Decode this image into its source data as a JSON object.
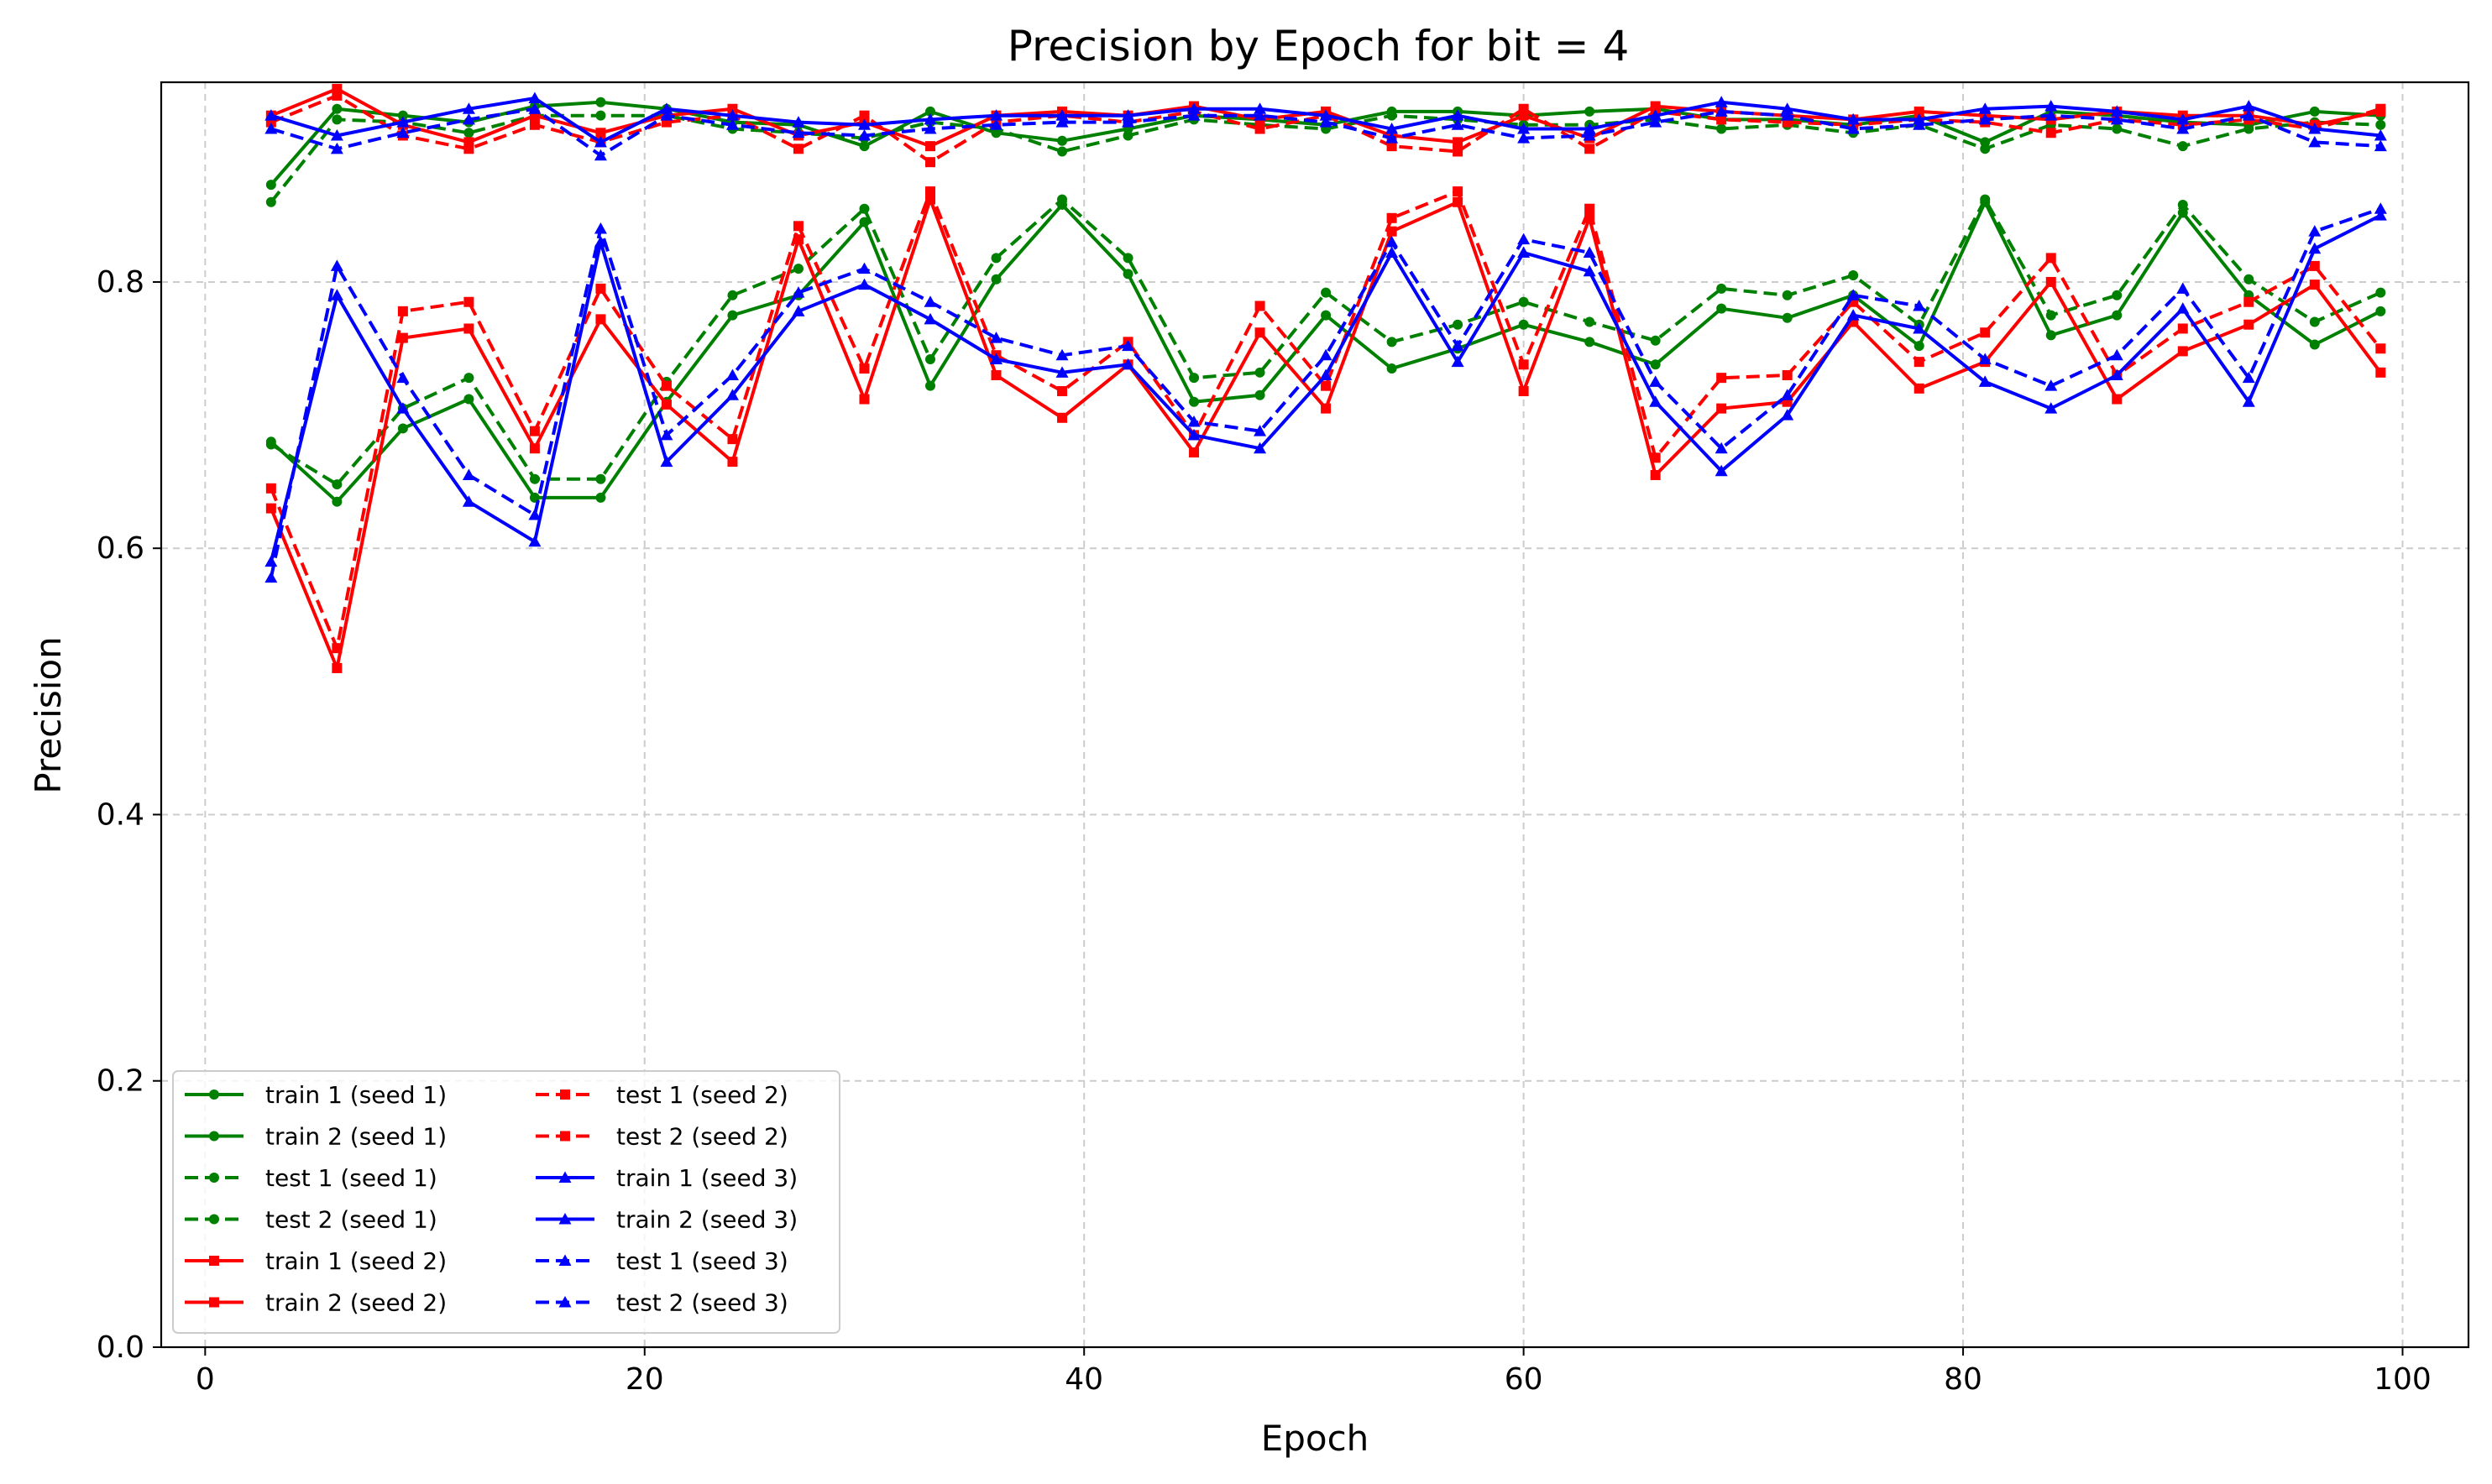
{
  "chart_data": {
    "type": "line",
    "title": "Precision by Epoch for bit = 4",
    "xlabel": "Epoch",
    "ylabel": "Precision",
    "xlim": [
      -2,
      103
    ],
    "ylim": [
      0.0,
      0.95
    ],
    "xticks": [
      0,
      20,
      40,
      60,
      80,
      100
    ],
    "yticks": [
      0.0,
      0.2,
      0.4,
      0.6,
      0.8
    ],
    "grid": true,
    "legend_position": "bottom-left",
    "legend_columns": 2,
    "x": [
      3,
      6,
      9,
      12,
      15,
      18,
      21,
      24,
      27,
      30,
      33,
      36,
      39,
      42,
      45,
      48,
      51,
      54,
      57,
      60,
      63,
      66,
      69,
      72,
      75,
      78,
      81,
      84,
      87,
      90,
      93,
      96,
      99
    ],
    "series": [
      {
        "name": "train 1 (seed 1)",
        "color": "#008000",
        "dash": "solid",
        "marker": "circle",
        "values": [
          0.873,
          0.93,
          0.925,
          0.92,
          0.932,
          0.935,
          0.93,
          0.92,
          0.918,
          0.902,
          0.928,
          0.912,
          0.906,
          0.915,
          0.925,
          0.922,
          0.918,
          0.928,
          0.928,
          0.925,
          0.928,
          0.93,
          0.922,
          0.922,
          0.918,
          0.925,
          0.905,
          0.928,
          0.925,
          0.92,
          0.918,
          0.928,
          0.925
        ]
      },
      {
        "name": "train 2 (seed 1)",
        "color": "#008000",
        "dash": "solid",
        "marker": "circle",
        "values": [
          0.68,
          0.635,
          0.69,
          0.712,
          0.638,
          0.638,
          0.71,
          0.775,
          0.79,
          0.845,
          0.722,
          0.802,
          0.858,
          0.806,
          0.71,
          0.715,
          0.775,
          0.735,
          0.75,
          0.768,
          0.755,
          0.738,
          0.78,
          0.773,
          0.79,
          0.752,
          0.86,
          0.76,
          0.775,
          0.852,
          0.79,
          0.753,
          0.778
        ]
      },
      {
        "name": "test 1 (seed 1)",
        "color": "#008000",
        "dash": "dashed",
        "marker": "circle",
        "values": [
          0.86,
          0.922,
          0.92,
          0.912,
          0.925,
          0.925,
          0.925,
          0.915,
          0.912,
          0.908,
          0.92,
          0.915,
          0.898,
          0.91,
          0.922,
          0.918,
          0.915,
          0.925,
          0.922,
          0.918,
          0.918,
          0.922,
          0.915,
          0.918,
          0.912,
          0.918,
          0.9,
          0.918,
          0.915,
          0.902,
          0.915,
          0.92,
          0.918
        ]
      },
      {
        "name": "test 2 (seed 1)",
        "color": "#008000",
        "dash": "dashed",
        "marker": "circle",
        "values": [
          0.678,
          0.648,
          0.705,
          0.728,
          0.652,
          0.652,
          0.725,
          0.79,
          0.81,
          0.855,
          0.742,
          0.818,
          0.862,
          0.818,
          0.728,
          0.732,
          0.792,
          0.755,
          0.768,
          0.785,
          0.77,
          0.756,
          0.795,
          0.79,
          0.805,
          0.768,
          0.862,
          0.775,
          0.79,
          0.858,
          0.802,
          0.77,
          0.792
        ]
      },
      {
        "name": "train 1 (seed 2)",
        "color": "#ff0000",
        "dash": "solid",
        "marker": "square",
        "values": [
          0.925,
          0.945,
          0.918,
          0.905,
          0.925,
          0.912,
          0.925,
          0.93,
          0.91,
          0.92,
          0.902,
          0.925,
          0.928,
          0.925,
          0.932,
          0.922,
          0.928,
          0.91,
          0.905,
          0.925,
          0.908,
          0.932,
          0.928,
          0.925,
          0.922,
          0.928,
          0.925,
          0.922,
          0.928,
          0.925,
          0.925,
          0.918,
          0.928
        ]
      },
      {
        "name": "train 2 (seed 2)",
        "color": "#ff0000",
        "dash": "solid",
        "marker": "square",
        "values": [
          0.63,
          0.51,
          0.758,
          0.765,
          0.675,
          0.772,
          0.708,
          0.665,
          0.832,
          0.712,
          0.862,
          0.73,
          0.698,
          0.738,
          0.672,
          0.762,
          0.705,
          0.838,
          0.86,
          0.718,
          0.848,
          0.655,
          0.705,
          0.71,
          0.77,
          0.72,
          0.74,
          0.8,
          0.712,
          0.748,
          0.768,
          0.798,
          0.732
        ]
      },
      {
        "name": "test 1 (seed 2)",
        "color": "#ff0000",
        "dash": "dashed",
        "marker": "square",
        "values": [
          0.92,
          0.94,
          0.91,
          0.9,
          0.918,
          0.905,
          0.92,
          0.925,
          0.9,
          0.925,
          0.89,
          0.92,
          0.925,
          0.92,
          0.928,
          0.915,
          0.925,
          0.902,
          0.898,
          0.93,
          0.9,
          0.928,
          0.922,
          0.92,
          0.918,
          0.922,
          0.92,
          0.912,
          0.922,
          0.918,
          0.922,
          0.915,
          0.93
        ]
      },
      {
        "name": "test 2 (seed 2)",
        "color": "#ff0000",
        "dash": "dashed",
        "marker": "square",
        "values": [
          0.645,
          0.525,
          0.778,
          0.785,
          0.688,
          0.795,
          0.722,
          0.682,
          0.842,
          0.735,
          0.868,
          0.745,
          0.718,
          0.755,
          0.685,
          0.782,
          0.722,
          0.848,
          0.868,
          0.738,
          0.855,
          0.668,
          0.728,
          0.73,
          0.785,
          0.74,
          0.762,
          0.818,
          0.73,
          0.765,
          0.785,
          0.812,
          0.75
        ]
      },
      {
        "name": "train 1 (seed 3)",
        "color": "#0000ff",
        "dash": "solid",
        "marker": "triangle",
        "values": [
          0.925,
          0.91,
          0.92,
          0.93,
          0.938,
          0.905,
          0.93,
          0.925,
          0.92,
          0.918,
          0.922,
          0.925,
          0.925,
          0.925,
          0.93,
          0.93,
          0.925,
          0.915,
          0.925,
          0.915,
          0.915,
          0.925,
          0.935,
          0.93,
          0.922,
          0.922,
          0.93,
          0.932,
          0.928,
          0.922,
          0.932,
          0.915,
          0.91
        ]
      },
      {
        "name": "train 2 (seed 3)",
        "color": "#0000ff",
        "dash": "solid",
        "marker": "triangle",
        "values": [
          0.59,
          0.79,
          0.705,
          0.635,
          0.605,
          0.83,
          0.665,
          0.715,
          0.778,
          0.798,
          0.772,
          0.742,
          0.732,
          0.738,
          0.685,
          0.675,
          0.73,
          0.822,
          0.74,
          0.822,
          0.808,
          0.71,
          0.658,
          0.7,
          0.775,
          0.765,
          0.725,
          0.705,
          0.73,
          0.78,
          0.71,
          0.825,
          0.85
        ]
      },
      {
        "name": "test 1 (seed 3)",
        "color": "#0000ff",
        "dash": "dashed",
        "marker": "triangle",
        "values": [
          0.915,
          0.9,
          0.912,
          0.922,
          0.93,
          0.895,
          0.925,
          0.918,
          0.912,
          0.91,
          0.915,
          0.918,
          0.92,
          0.92,
          0.925,
          0.925,
          0.92,
          0.908,
          0.918,
          0.908,
          0.91,
          0.92,
          0.928,
          0.925,
          0.915,
          0.918,
          0.922,
          0.925,
          0.922,
          0.915,
          0.925,
          0.905,
          0.902
        ]
      },
      {
        "name": "test 2 (seed 3)",
        "color": "#0000ff",
        "dash": "dashed",
        "marker": "triangle",
        "values": [
          0.578,
          0.812,
          0.728,
          0.655,
          0.625,
          0.84,
          0.685,
          0.73,
          0.792,
          0.81,
          0.785,
          0.758,
          0.745,
          0.752,
          0.695,
          0.688,
          0.745,
          0.83,
          0.752,
          0.832,
          0.822,
          0.725,
          0.675,
          0.715,
          0.79,
          0.782,
          0.742,
          0.722,
          0.745,
          0.795,
          0.728,
          0.838,
          0.855
        ]
      }
    ]
  }
}
